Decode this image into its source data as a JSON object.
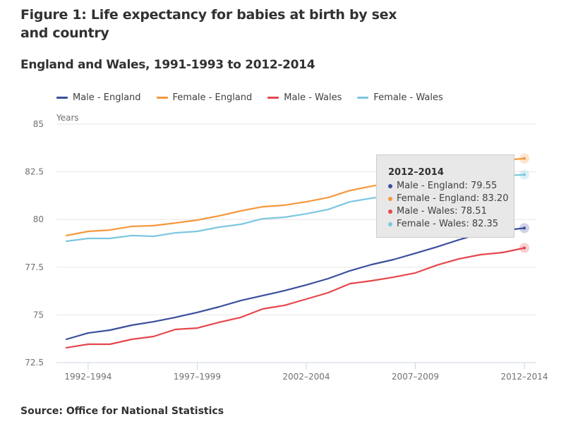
{
  "figure": {
    "title": "Figure 1: Life expectancy for babies at birth by sex and country",
    "subtitle": "England and Wales, 1991-1993 to 2012-2014",
    "source": "Source: Office for National Statistics"
  },
  "tooltip": {
    "title": "2012–2014",
    "rows": [
      {
        "label": "Male - England: 79.55",
        "color": "#3b4f9c"
      },
      {
        "label": "Female - England: 83.20",
        "color": "#f5983d"
      },
      {
        "label": "Male - Wales: 78.51",
        "color": "#e5474c"
      },
      {
        "label": "Female - Wales: 82.35",
        "color": "#7cc7e0"
      }
    ]
  },
  "chart_data": {
    "type": "line",
    "title": "Figure 1: Life expectancy for babies at birth by sex and country",
    "subtitle": "England and Wales, 1991-1993 to 2012-2014",
    "xlabel": "",
    "ylabel": "Years",
    "ylim": [
      72.5,
      85
    ],
    "yticks": [
      72.5,
      75,
      77.5,
      80,
      82.5,
      85
    ],
    "ytick_labels": [
      "72.5",
      "75",
      "77.5",
      "80",
      "82.5",
      "85"
    ],
    "grid": true,
    "legend_position": "top-left",
    "x": [
      "1991–1993",
      "1992–1994",
      "1993–1995",
      "1994–1996",
      "1995–1997",
      "1996–1998",
      "1997–1999",
      "1998–2000",
      "1999–2001",
      "2000–2002",
      "2001–2003",
      "2002–2004",
      "2003–2005",
      "2004–2006",
      "2005–2007",
      "2006–2008",
      "2007–2009",
      "2008–2010",
      "2009–2011",
      "2010–2012",
      "2011–2013",
      "2012–2014"
    ],
    "xtick_labels": [
      "1992–1994",
      "1997–1999",
      "2002–2004",
      "2007–2009",
      "2012–2014"
    ],
    "xtick_indices": [
      1,
      6,
      11,
      16,
      21
    ],
    "series": [
      {
        "name": "Male - England",
        "color": "#3b4f9c",
        "values": [
          73.72,
          74.05,
          74.2,
          74.46,
          74.64,
          74.87,
          75.13,
          75.42,
          75.75,
          76.01,
          76.27,
          76.57,
          76.9,
          77.31,
          77.64,
          77.9,
          78.23,
          78.57,
          78.94,
          79.27,
          79.42,
          79.55
        ]
      },
      {
        "name": "Female - England",
        "color": "#f5983d",
        "values": [
          79.16,
          79.38,
          79.45,
          79.64,
          79.68,
          79.82,
          79.97,
          80.19,
          80.45,
          80.67,
          80.75,
          80.93,
          81.15,
          81.52,
          81.75,
          81.97,
          82.26,
          82.52,
          82.78,
          82.97,
          83.1,
          83.2
        ]
      },
      {
        "name": "Male - Wales",
        "color": "#e5474c",
        "values": [
          73.28,
          73.46,
          73.46,
          73.72,
          73.87,
          74.24,
          74.31,
          74.61,
          74.87,
          75.31,
          75.5,
          75.83,
          76.16,
          76.64,
          76.79,
          76.98,
          77.2,
          77.61,
          77.94,
          78.16,
          78.27,
          78.51
        ]
      },
      {
        "name": "Female - Wales",
        "color": "#7cc7e0",
        "values": [
          78.86,
          79.01,
          79.01,
          79.16,
          79.12,
          79.3,
          79.38,
          79.6,
          79.75,
          80.04,
          80.12,
          80.3,
          80.53,
          80.93,
          81.12,
          81.26,
          81.6,
          81.82,
          82.04,
          82.23,
          82.3,
          82.35
        ]
      }
    ],
    "highlighted_index": 21
  }
}
